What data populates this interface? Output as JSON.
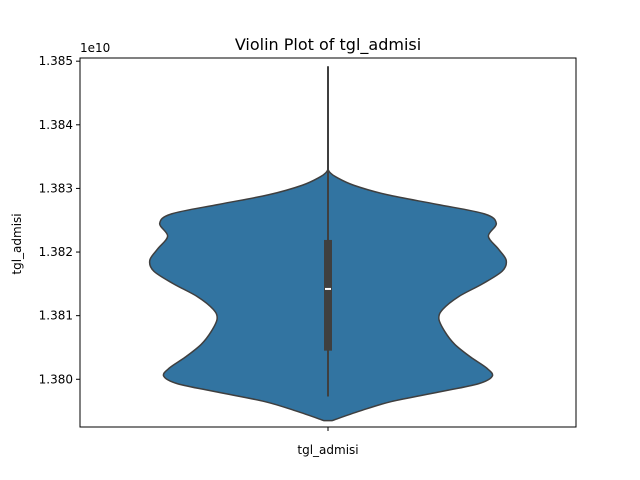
{
  "chart_data": {
    "type": "violin",
    "title": "Violin Plot of tgl_admisi",
    "xlabel": "",
    "ylabel": "tgl_admisi",
    "x_tick_label": "tgl_admisi",
    "y_offset_label": "1e10",
    "y_scale_factor": 10000000000,
    "ylim": [
      1.37925,
      1.38505
    ],
    "y_ticks": [
      1.38,
      1.381,
      1.382,
      1.383,
      1.384,
      1.385
    ],
    "y_tick_labels": [
      "1.380",
      "1.381",
      "1.382",
      "1.383",
      "1.384",
      "1.385"
    ],
    "grid": false,
    "colors": {
      "violin_fill": "#3274a1",
      "violin_edge": "#3f3f3f",
      "box": "#3f3f3f",
      "median": "#ffffff"
    },
    "violin_profile": [
      {
        "y": 1.37935,
        "w": 0.02
      },
      {
        "y": 1.3795,
        "w": 0.16
      },
      {
        "y": 1.37965,
        "w": 0.32
      },
      {
        "y": 1.3798,
        "w": 0.56
      },
      {
        "y": 1.37993,
        "w": 0.76
      },
      {
        "y": 1.38005,
        "w": 0.83
      },
      {
        "y": 1.38018,
        "w": 0.8
      },
      {
        "y": 1.38035,
        "w": 0.72
      },
      {
        "y": 1.38055,
        "w": 0.64
      },
      {
        "y": 1.38075,
        "w": 0.59
      },
      {
        "y": 1.38095,
        "w": 0.56
      },
      {
        "y": 1.3811,
        "w": 0.58
      },
      {
        "y": 1.3813,
        "w": 0.66
      },
      {
        "y": 1.3815,
        "w": 0.78
      },
      {
        "y": 1.3817,
        "w": 0.88
      },
      {
        "y": 1.38187,
        "w": 0.9
      },
      {
        "y": 1.38205,
        "w": 0.86
      },
      {
        "y": 1.38225,
        "w": 0.81
      },
      {
        "y": 1.38245,
        "w": 0.85
      },
      {
        "y": 1.3826,
        "w": 0.79
      },
      {
        "y": 1.38275,
        "w": 0.55
      },
      {
        "y": 1.3829,
        "w": 0.3
      },
      {
        "y": 1.38305,
        "w": 0.13
      },
      {
        "y": 1.38318,
        "w": 0.04
      },
      {
        "y": 1.38325,
        "w": 0.01
      },
      {
        "y": 1.3833,
        "w": 0.0
      }
    ],
    "box": {
      "q1": 1.38045,
      "median": 1.38142,
      "q3": 1.38219,
      "whisker_low": 1.37973,
      "whisker_high": 1.38492
    }
  }
}
